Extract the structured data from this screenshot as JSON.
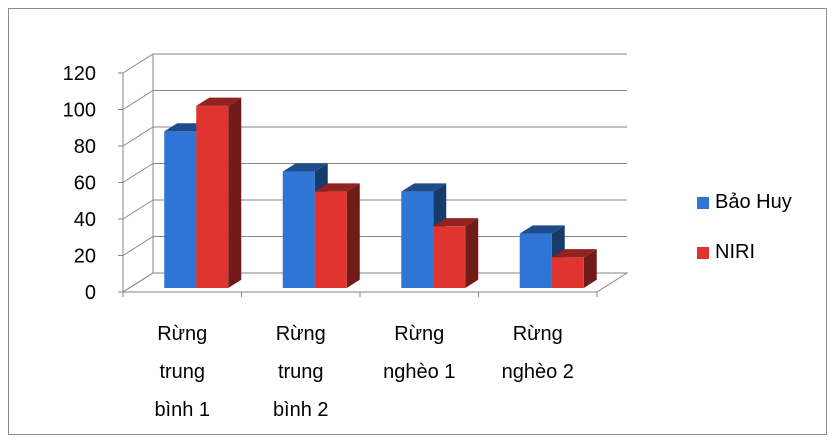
{
  "chart_data": {
    "type": "bar",
    "categories": [
      [
        "Rừng",
        "trung",
        "bình 1"
      ],
      [
        "Rừng",
        "trung",
        "bình 2"
      ],
      [
        "Rừng",
        "nghèo 1"
      ],
      [
        "Rừng",
        "nghèo 2"
      ]
    ],
    "series": [
      {
        "name": "Bảo Huy",
        "color": "#2e75d6",
        "values": [
          88,
          66,
          55,
          32
        ]
      },
      {
        "name": "NIRI",
        "color": "#e03431",
        "values": [
          102,
          55,
          36,
          19
        ]
      }
    ],
    "ylim": [
      0,
      120
    ],
    "yticks": [
      "0",
      "20",
      "40",
      "60",
      "80",
      "100",
      "120"
    ],
    "grid": true,
    "legend_position": "right",
    "style": "3d-clustered-column"
  }
}
